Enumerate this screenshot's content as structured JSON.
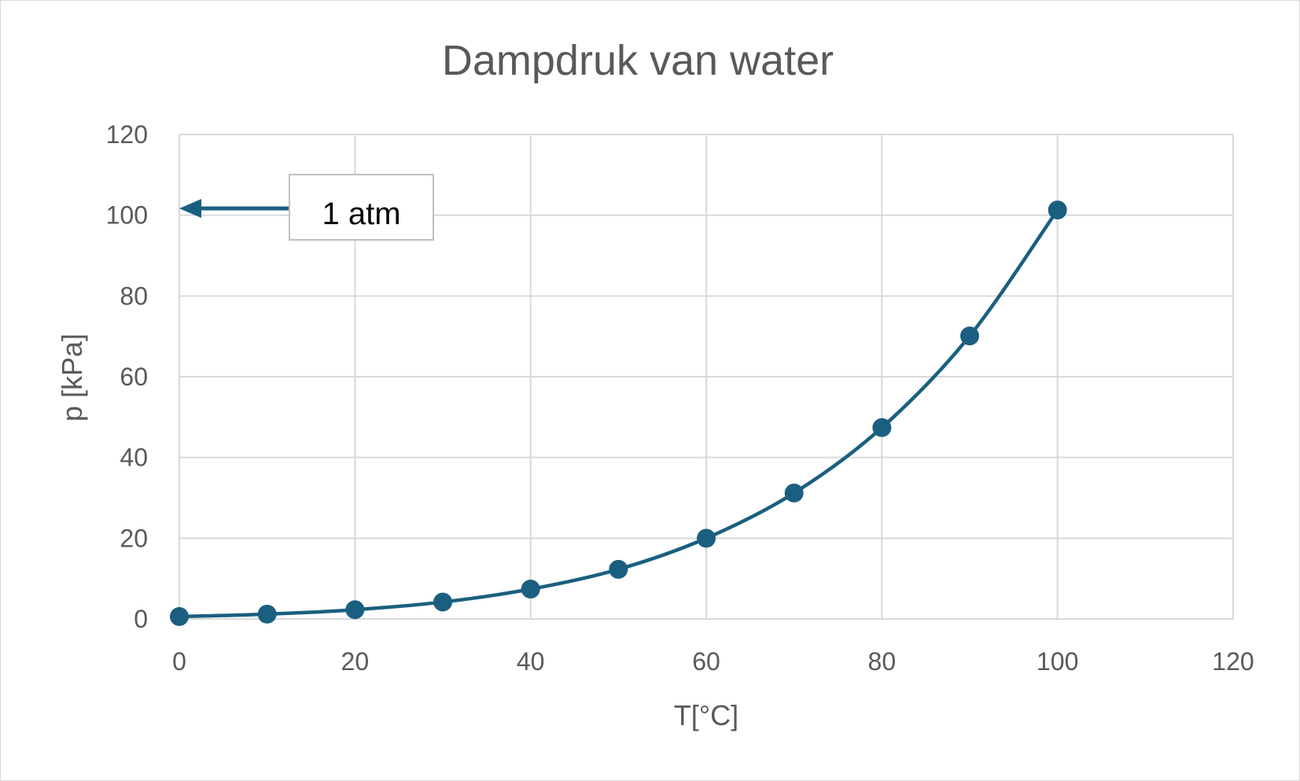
{
  "chart_data": {
    "type": "scatter",
    "title": "Dampdruk van water",
    "xlabel": "T[°C]",
    "ylabel": "p [kPa]",
    "xlim": [
      0,
      120
    ],
    "ylim": [
      0,
      120
    ],
    "xticks": [
      0,
      20,
      40,
      60,
      80,
      100,
      120
    ],
    "yticks": [
      0,
      20,
      40,
      60,
      80,
      100,
      120
    ],
    "grid": true,
    "smooth_line": true,
    "marker": "circle",
    "series": [
      {
        "x": [
          0,
          10,
          20,
          30,
          40,
          50,
          60,
          70,
          80,
          90,
          100
        ],
        "y": [
          0.6,
          1.2,
          2.3,
          4.2,
          7.4,
          12.3,
          20.0,
          31.2,
          47.4,
          70.1,
          101.3
        ],
        "color": "#1a5f7f"
      }
    ],
    "annotation": {
      "text": "1 atm",
      "y": 101.3,
      "arrow_color": "#1a5f7f"
    }
  },
  "colors": {
    "grid": "#d9d9d9",
    "text": "#595959",
    "series": "#1a5f7f"
  }
}
